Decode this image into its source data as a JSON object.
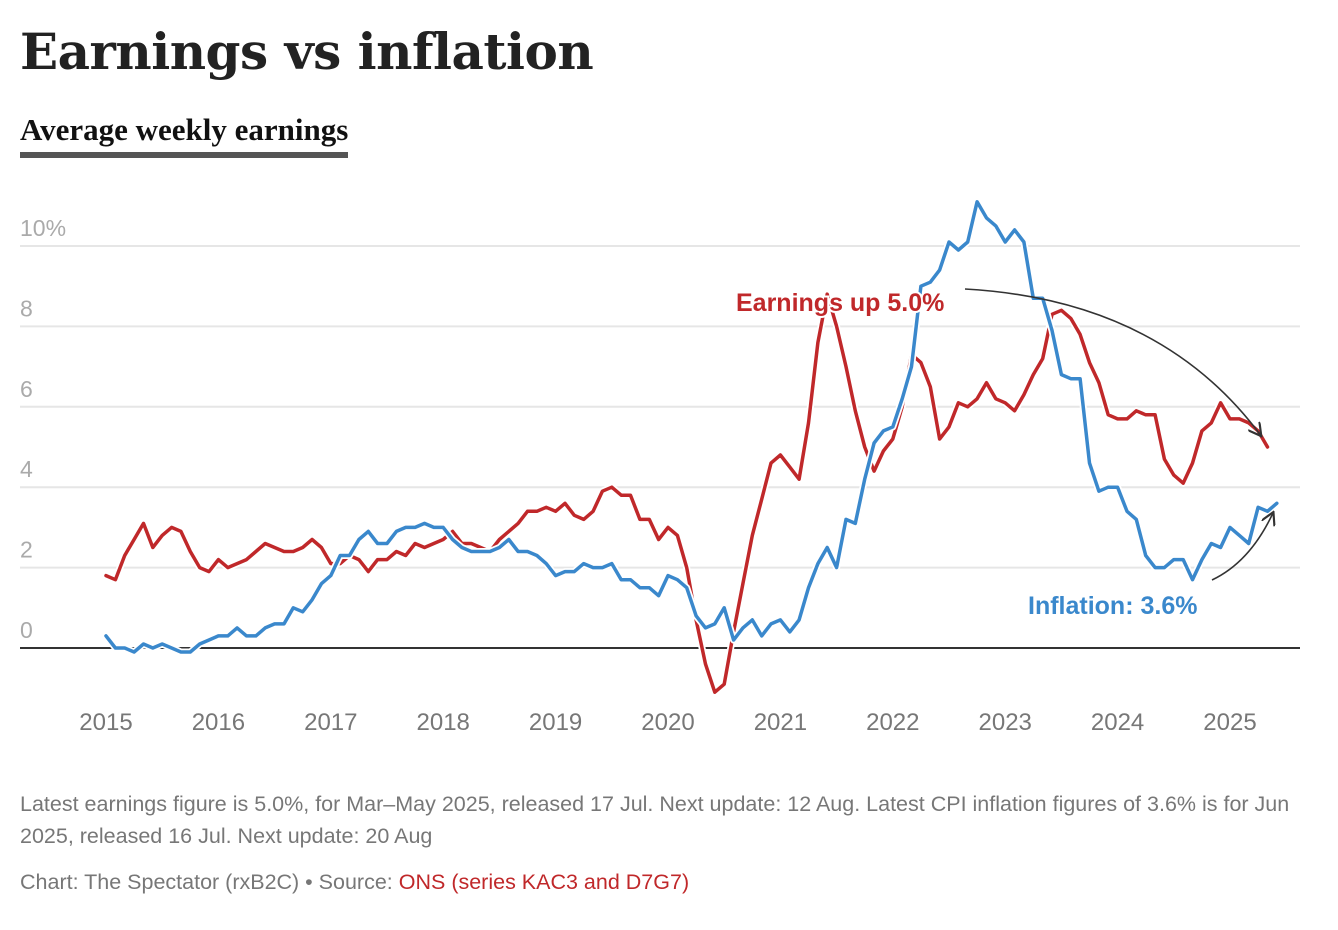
{
  "header": {
    "title": "Earnings vs inflation",
    "subtitle": "Average weekly earnings"
  },
  "footer": {
    "note": "Latest earnings figure is 5.0%, for Mar–May 2025, released 17 Jul. Next update: 12 Aug. Latest CPI inflation figures of 3.6% is for Jun 2025, released 16 Jul. Next update: 20 Aug",
    "credit": "Chart: The Spectator (rxB2C) • Source: ",
    "source_link": "ONS (series KAC3 and D7G7)"
  },
  "colors": {
    "earnings": "#c0282a",
    "inflation": "#3a88cc",
    "grid": "#e6e6e6",
    "axis_text": "#aaaaaa",
    "x_text": "#777777",
    "zero_line": "#333333",
    "arrow": "#333333"
  },
  "chart_data": {
    "type": "line",
    "title": "Earnings vs inflation",
    "subtitle": "Average weekly earnings",
    "xlabel": "",
    "ylabel": "",
    "x_start": "2015-01",
    "x_frequency": "monthly",
    "xlim": [
      2015.0,
      2025.6
    ],
    "ylim": [
      -1.2,
      11.2
    ],
    "yticks": [
      0,
      2,
      4,
      6,
      8,
      10
    ],
    "ytick_labels": [
      "0",
      "2",
      "4",
      "6",
      "8",
      "10%"
    ],
    "xticks": [
      2015,
      2016,
      2017,
      2018,
      2019,
      2020,
      2021,
      2022,
      2023,
      2024,
      2025
    ],
    "xtick_labels": [
      "2015",
      "2016",
      "2017",
      "2018",
      "2019",
      "2020",
      "2021",
      "2022",
      "2023",
      "2024",
      "2025"
    ],
    "grid": true,
    "series": [
      {
        "name": "Earnings",
        "color": "#c0282a",
        "values": [
          1.8,
          1.7,
          2.3,
          2.7,
          3.1,
          2.5,
          2.8,
          3.0,
          2.9,
          2.4,
          2.0,
          1.9,
          2.2,
          2.0,
          2.1,
          2.2,
          2.4,
          2.6,
          2.5,
          2.4,
          2.4,
          2.5,
          2.7,
          2.5,
          2.1,
          2.1,
          2.3,
          2.2,
          1.9,
          2.2,
          2.2,
          2.4,
          2.3,
          2.6,
          2.5,
          2.6,
          2.7,
          2.9,
          2.6,
          2.6,
          2.5,
          2.4,
          2.7,
          2.9,
          3.1,
          3.4,
          3.4,
          3.5,
          3.4,
          3.6,
          3.3,
          3.2,
          3.4,
          3.9,
          4.0,
          3.8,
          3.8,
          3.2,
          3.2,
          2.7,
          3.0,
          2.8,
          2.0,
          0.7,
          -0.4,
          -1.1,
          -0.9,
          0.4,
          1.6,
          2.8,
          3.7,
          4.6,
          4.8,
          4.5,
          4.2,
          5.6,
          7.6,
          8.8,
          8.0,
          7.0,
          5.9,
          5.0,
          4.4,
          4.9,
          5.2,
          6.0,
          7.3,
          7.1,
          6.5,
          5.2,
          5.5,
          6.1,
          6.0,
          6.2,
          6.6,
          6.2,
          6.1,
          5.9,
          6.3,
          6.8,
          7.2,
          8.3,
          8.4,
          8.2,
          7.8,
          7.1,
          6.6,
          5.8,
          5.7,
          5.7,
          5.9,
          5.8,
          5.8,
          4.7,
          4.3,
          4.1,
          4.6,
          5.4,
          5.6,
          6.1,
          5.7,
          5.7,
          5.6,
          5.4,
          5.0
        ]
      },
      {
        "name": "Inflation",
        "color": "#3a88cc",
        "values": [
          0.3,
          0.0,
          0.0,
          -0.1,
          0.1,
          0.0,
          0.1,
          0.0,
          -0.1,
          -0.1,
          0.1,
          0.2,
          0.3,
          0.3,
          0.5,
          0.3,
          0.3,
          0.5,
          0.6,
          0.6,
          1.0,
          0.9,
          1.2,
          1.6,
          1.8,
          2.3,
          2.3,
          2.7,
          2.9,
          2.6,
          2.6,
          2.9,
          3.0,
          3.0,
          3.1,
          3.0,
          3.0,
          2.7,
          2.5,
          2.4,
          2.4,
          2.4,
          2.5,
          2.7,
          2.4,
          2.4,
          2.3,
          2.1,
          1.8,
          1.9,
          1.9,
          2.1,
          2.0,
          2.0,
          2.1,
          1.7,
          1.7,
          1.5,
          1.5,
          1.3,
          1.8,
          1.7,
          1.5,
          0.8,
          0.5,
          0.6,
          1.0,
          0.2,
          0.5,
          0.7,
          0.3,
          0.6,
          0.7,
          0.4,
          0.7,
          1.5,
          2.1,
          2.5,
          2.0,
          3.2,
          3.1,
          4.2,
          5.1,
          5.4,
          5.5,
          6.2,
          7.0,
          9.0,
          9.1,
          9.4,
          10.1,
          9.9,
          10.1,
          11.1,
          10.7,
          10.5,
          10.1,
          10.4,
          10.1,
          8.7,
          8.7,
          7.9,
          6.8,
          6.7,
          6.7,
          4.6,
          3.9,
          4.0,
          4.0,
          3.4,
          3.2,
          2.3,
          2.0,
          2.0,
          2.2,
          2.2,
          1.7,
          2.2,
          2.6,
          2.5,
          3.0,
          2.8,
          2.6,
          3.5,
          3.4,
          3.6
        ]
      }
    ],
    "annotations": [
      {
        "text": "Earnings up 5.0%",
        "series": "Earnings",
        "color": "#c0282a"
      },
      {
        "text": "Inflation: 3.6%",
        "series": "Inflation",
        "color": "#3a88cc"
      }
    ],
    "legend": "none (direct annotations)"
  }
}
